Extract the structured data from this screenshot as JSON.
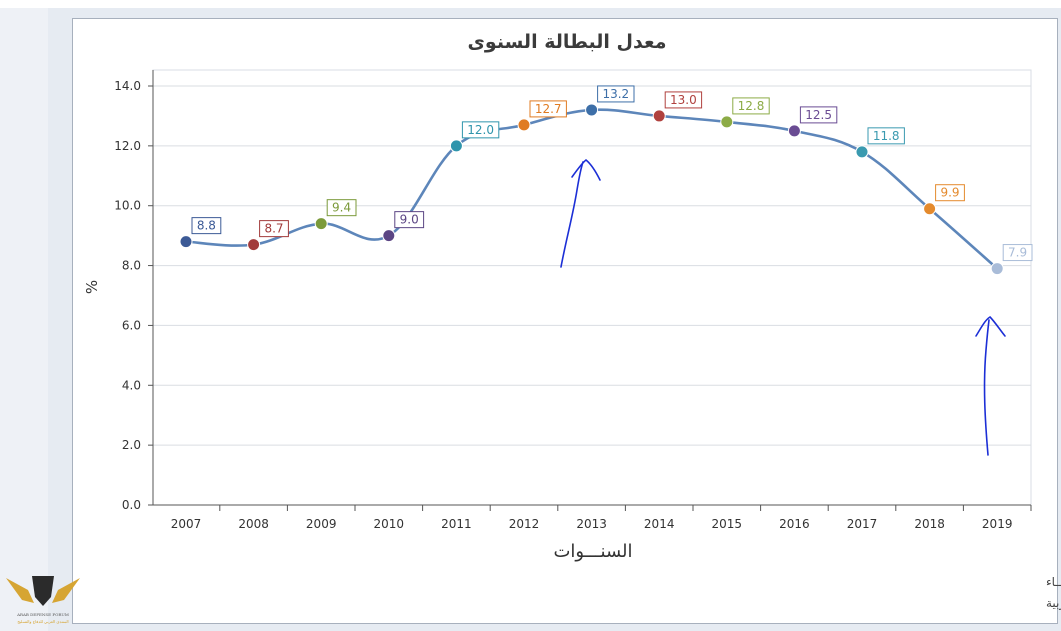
{
  "chart_data": {
    "type": "line",
    "title": "معدل البطالة  السنوى",
    "xlabel": "السنـــوات",
    "ylabel": "%",
    "categories": [
      "2007",
      "2008",
      "2009",
      "2010",
      "2011",
      "2012",
      "2013",
      "2014",
      "2015",
      "2016",
      "2017",
      "2018",
      "2019"
    ],
    "values": [
      8.8,
      8.7,
      9.4,
      9.0,
      12.0,
      12.7,
      13.2,
      13.0,
      12.8,
      12.5,
      11.8,
      9.9,
      7.9
    ],
    "data_labels": [
      "8.8",
      "8.7",
      "9.4",
      "9.0",
      "12.0",
      "12.7",
      "13.2",
      "13.0",
      "12.8",
      "12.5",
      "11.8",
      "9.9",
      "7.9"
    ],
    "point_colors": [
      "#3c5a96",
      "#a23b3b",
      "#7b9a3a",
      "#5b4584",
      "#2f95ac",
      "#e07b22",
      "#3d6fa8",
      "#b0413e",
      "#8cab46",
      "#6a4c93",
      "#3a9ab0",
      "#e48a2d",
      "#a9bcd8"
    ],
    "line_color": "#5d86ba",
    "ylim": [
      0,
      14
    ],
    "yticks": [
      "0.0",
      "2.0",
      "4.0",
      "6.0",
      "8.0",
      "10.0",
      "12.0",
      "14.0"
    ],
    "grid": true,
    "legend": "none"
  },
  "footer": {
    "line1": "حقوق الملكية للجهـــاز المركزي للتعبئة العــامة والأحصـــاء",
    "line2": "المصدر الأساسـي للأحصاءات الرسـمية لجمهورية مصر العربية"
  },
  "logo": {
    "caption1": "ARAB DEFENSE FORUM",
    "caption2": "المنتدى العربي للدفاع والتسليح",
    "colors": {
      "gold": "#d6a533",
      "dark": "#2b2b2b"
    }
  },
  "annotations": {
    "ink_color": "#1c2fd6"
  }
}
